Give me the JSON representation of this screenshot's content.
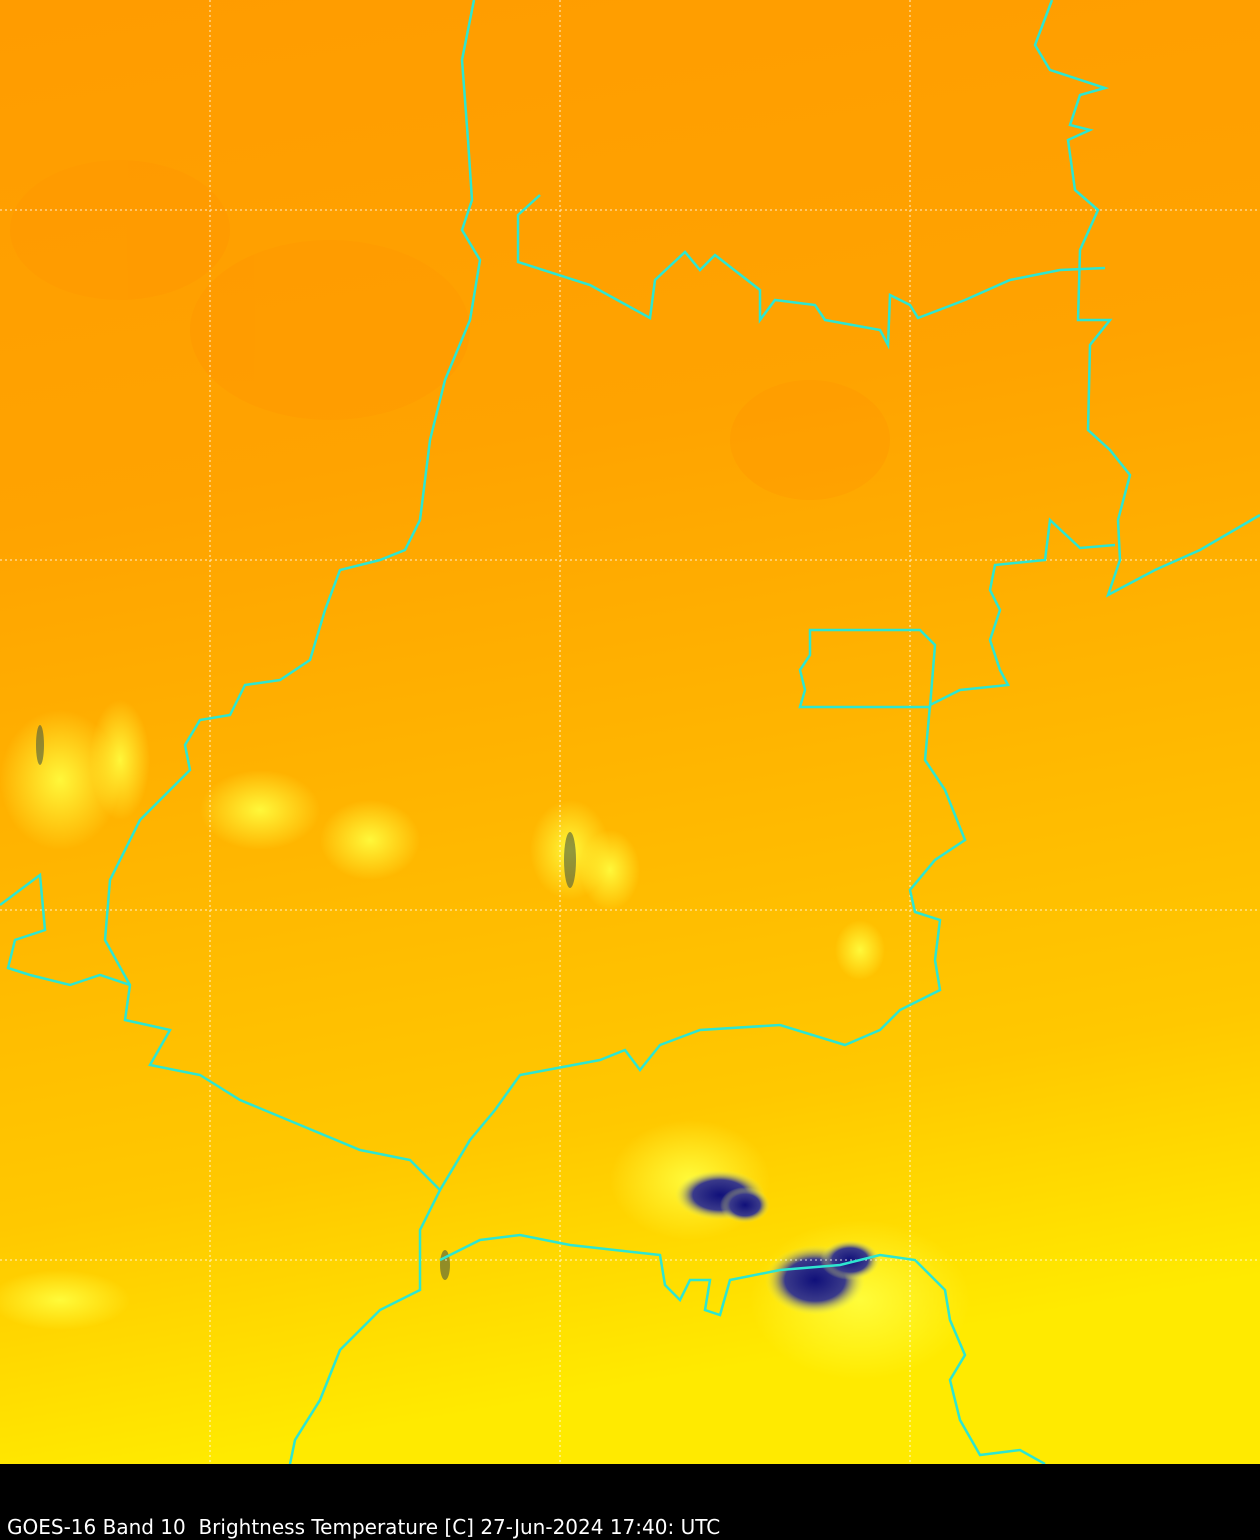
{
  "caption": "GOES-16 Band 10  Brightness Temperature [C] 27-Jun-2024 17:40: UTC",
  "colors": {
    "warm_top": "#ff9c00",
    "warm_mid": "#ffb800",
    "warm_bottom": "#ffe800",
    "cold_cloud": "#1a1a80",
    "boundary": "#2ee6d0",
    "grid": "#ffffff"
  }
}
